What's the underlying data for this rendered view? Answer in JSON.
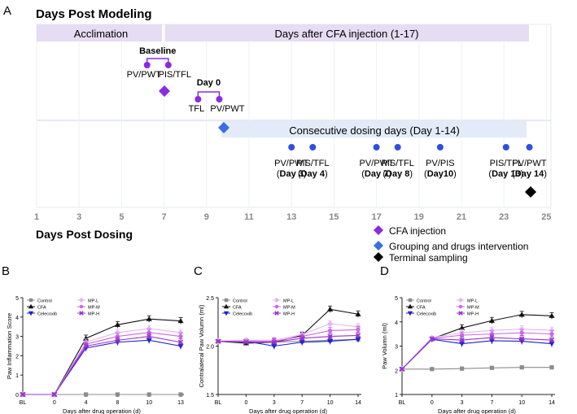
{
  "colors": {
    "bar": "#e6dcf3",
    "band": "#e3ebf8",
    "purple": "#8a2be2",
    "dot_blue": "#2e4fe0",
    "grouping_blue": "#3a6fe0",
    "axis": "#222222",
    "series_gray": "#8c8c8c",
    "series_black": "#111111",
    "series_blue": "#1f1fcf",
    "series_light": "#e0b8f0",
    "series_mid": "#cc66e6",
    "series_dark": "#9a33cc"
  },
  "timeline": {
    "panel_label": "A",
    "heading_top": "Days Post Modeling",
    "heading_bottom": "Days Post Dosing",
    "acclimation_label": "Acclimation",
    "cfa_period_label": "Days after CFA injection (1-17)",
    "dosing_label": "Consecutive dosing days (Day 1-14)",
    "baseline_title": "Baseline",
    "baseline_left": "PV/PWT",
    "baseline_right": "PIS/TFL",
    "day0_title": "Day 0",
    "day0_left": "TFL",
    "day0_right": "PV/PWT",
    "axis_ticks": [
      1,
      3,
      5,
      7,
      9,
      11,
      13,
      15,
      17,
      19,
      21,
      23,
      25
    ],
    "measurements": [
      {
        "day": 13.0,
        "label": "PV/PWT",
        "sub": "Day 3"
      },
      {
        "day": 14.0,
        "label": "PIS/TFL",
        "sub": "Day 4"
      },
      {
        "day": 17.0,
        "label": "PV/PWT",
        "sub": "Day 7"
      },
      {
        "day": 18.0,
        "label": "PIS/TFL",
        "sub": "Day 8"
      },
      {
        "day": 20.0,
        "label": "PV/PIS",
        "sub": "Day10"
      },
      {
        "day": 23.1,
        "label": "PIS/TFL",
        "sub": "Day 13"
      },
      {
        "day": 24.2,
        "label": "PV/PWT",
        "sub": "Day 14"
      }
    ],
    "legend": [
      {
        "shape": "diamond",
        "color": "#8a2be2",
        "label": "CFA injection"
      },
      {
        "shape": "diamond",
        "color": "#3a6fe0",
        "label": "Grouping and drugs intervention"
      },
      {
        "shape": "diamond",
        "color": "#000000",
        "label": "Terminal sampling"
      }
    ]
  },
  "chart_data": [
    {
      "type": "line",
      "panel": "B",
      "title": "",
      "xlabel": "Days after drug operation (d)",
      "ylabel": "Paw Inflammation Score",
      "categories": [
        "BL",
        "0",
        "4",
        "8",
        "10",
        "13"
      ],
      "ylim": [
        0,
        5
      ],
      "yticks": [
        "0",
        "1",
        "2",
        "3",
        "4",
        "5"
      ],
      "legend": [
        "Control",
        "CFA",
        "Celecoxib",
        "MP-L",
        "MP-M",
        "MP-H"
      ],
      "series": [
        {
          "name": "Control",
          "values": [
            0,
            0,
            0,
            0,
            0,
            0
          ]
        },
        {
          "name": "CFA",
          "values": [
            0,
            0,
            2.9,
            3.6,
            3.9,
            3.8
          ]
        },
        {
          "name": "Celecoxib",
          "values": [
            0,
            0,
            2.4,
            2.7,
            2.8,
            2.5
          ]
        },
        {
          "name": "MP-L",
          "values": [
            0,
            0,
            2.7,
            3.2,
            3.4,
            3.2
          ]
        },
        {
          "name": "MP-M",
          "values": [
            0,
            0,
            2.6,
            3.0,
            3.2,
            3.0
          ]
        },
        {
          "name": "MP-H",
          "values": [
            0,
            0,
            2.5,
            2.8,
            3.0,
            2.7
          ]
        }
      ]
    },
    {
      "type": "line",
      "panel": "C",
      "title": "",
      "xlabel": "Days after drug operation (d)",
      "ylabel": "Contralateral Paw Volumn (ml)",
      "categories": [
        "BL",
        "0",
        "3",
        "7",
        "10",
        "14"
      ],
      "ylim": [
        1.5,
        2.5
      ],
      "yticks": [
        "1.5",
        "2.0",
        "2.5"
      ],
      "legend": [
        "Control",
        "CFA",
        "Celecoxib",
        "MP-L",
        "MP-M",
        "MP-H"
      ],
      "series": [
        {
          "name": "Control",
          "values": [
            2.05,
            2.06,
            2.04,
            2.05,
            2.06,
            2.07
          ]
        },
        {
          "name": "CFA",
          "values": [
            2.05,
            2.03,
            2.04,
            2.11,
            2.38,
            2.33
          ]
        },
        {
          "name": "Celecoxib",
          "values": [
            2.05,
            2.05,
            2.0,
            2.04,
            2.05,
            2.07
          ]
        },
        {
          "name": "MP-L",
          "values": [
            2.05,
            2.06,
            2.06,
            2.12,
            2.23,
            2.2
          ]
        },
        {
          "name": "MP-M",
          "values": [
            2.05,
            2.05,
            2.05,
            2.1,
            2.16,
            2.17
          ]
        },
        {
          "name": "MP-H",
          "values": [
            2.05,
            2.04,
            2.04,
            2.08,
            2.1,
            2.11
          ]
        }
      ]
    },
    {
      "type": "line",
      "panel": "D",
      "title": "",
      "xlabel": "Days after drug operation (d)",
      "ylabel": "Paw Volumn (ml)",
      "categories": [
        "BL",
        "0",
        "3",
        "7",
        "10",
        "14"
      ],
      "ylim": [
        1,
        5
      ],
      "yticks": [
        "1",
        "2",
        "3",
        "4",
        "5"
      ],
      "legend": [
        "Control",
        "CFA",
        "Celecoxib",
        "MP-L",
        "MP-M",
        "MP-H"
      ],
      "series": [
        {
          "name": "Control",
          "values": [
            2.05,
            2.05,
            2.07,
            2.1,
            2.12,
            2.12
          ]
        },
        {
          "name": "CFA",
          "values": [
            2.05,
            3.3,
            3.75,
            4.05,
            4.3,
            4.25
          ]
        },
        {
          "name": "Celecoxib",
          "values": [
            2.05,
            3.28,
            3.1,
            3.22,
            3.2,
            3.1
          ]
        },
        {
          "name": "MP-L",
          "values": [
            2.05,
            3.35,
            3.55,
            3.65,
            3.7,
            3.65
          ]
        },
        {
          "name": "MP-M",
          "values": [
            2.05,
            3.32,
            3.45,
            3.5,
            3.55,
            3.5
          ]
        },
        {
          "name": "MP-H",
          "values": [
            2.05,
            3.3,
            3.25,
            3.35,
            3.3,
            3.25
          ]
        }
      ]
    }
  ]
}
